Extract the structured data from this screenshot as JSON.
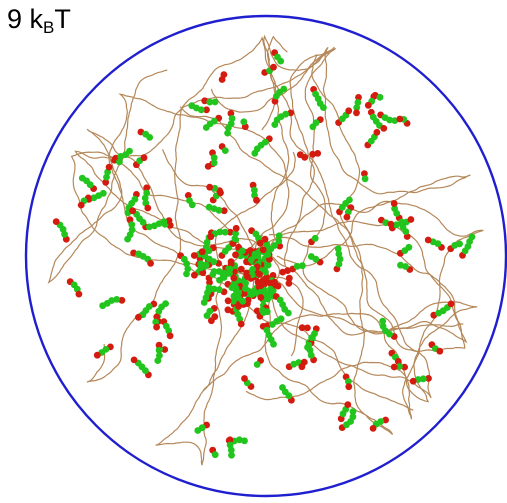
{
  "label": {
    "value": "9",
    "k": "k",
    "subscript": "B",
    "t": "T"
  },
  "colors": {
    "boundary": "#1f1fd0",
    "polymer": "#b5885a",
    "bead_green": "#22c51e",
    "bead_red": "#d41b10",
    "background": "#ffffff"
  }
}
